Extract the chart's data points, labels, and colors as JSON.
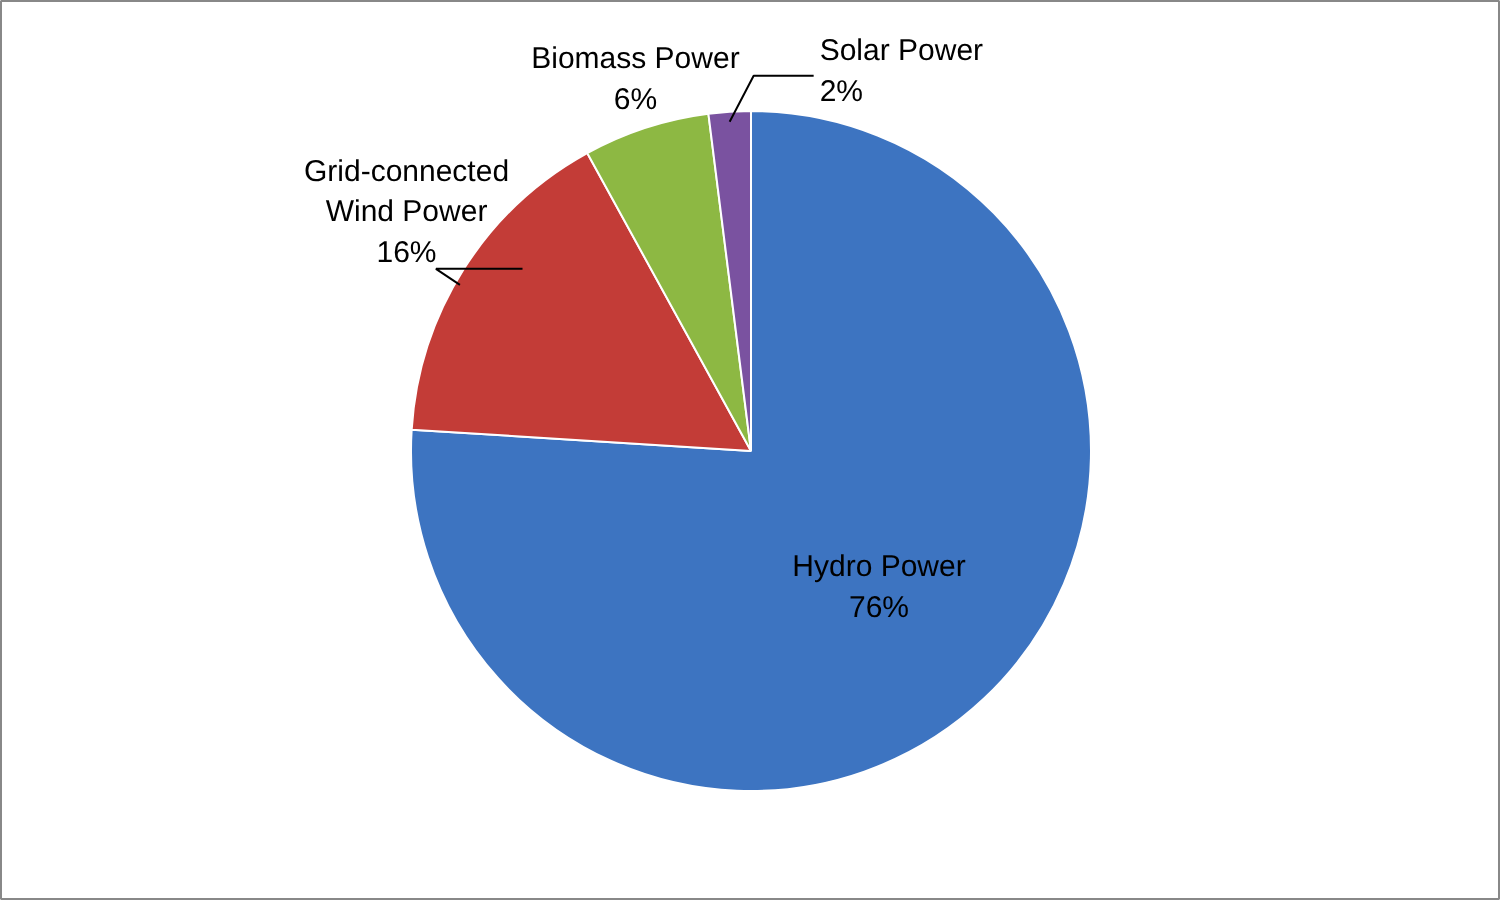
{
  "chart_data": {
    "type": "pie",
    "categories": [
      "Hydro Power",
      "Grid-connected\nWind Power",
      "Biomass Power",
      "Solar Power"
    ],
    "values": [
      76,
      16,
      6,
      2
    ],
    "colors": [
      "#3d74c1",
      "#c33c37",
      "#8db843",
      "#7a52a0"
    ],
    "value_labels": [
      "76%",
      "16%",
      "6%",
      "2%"
    ]
  }
}
